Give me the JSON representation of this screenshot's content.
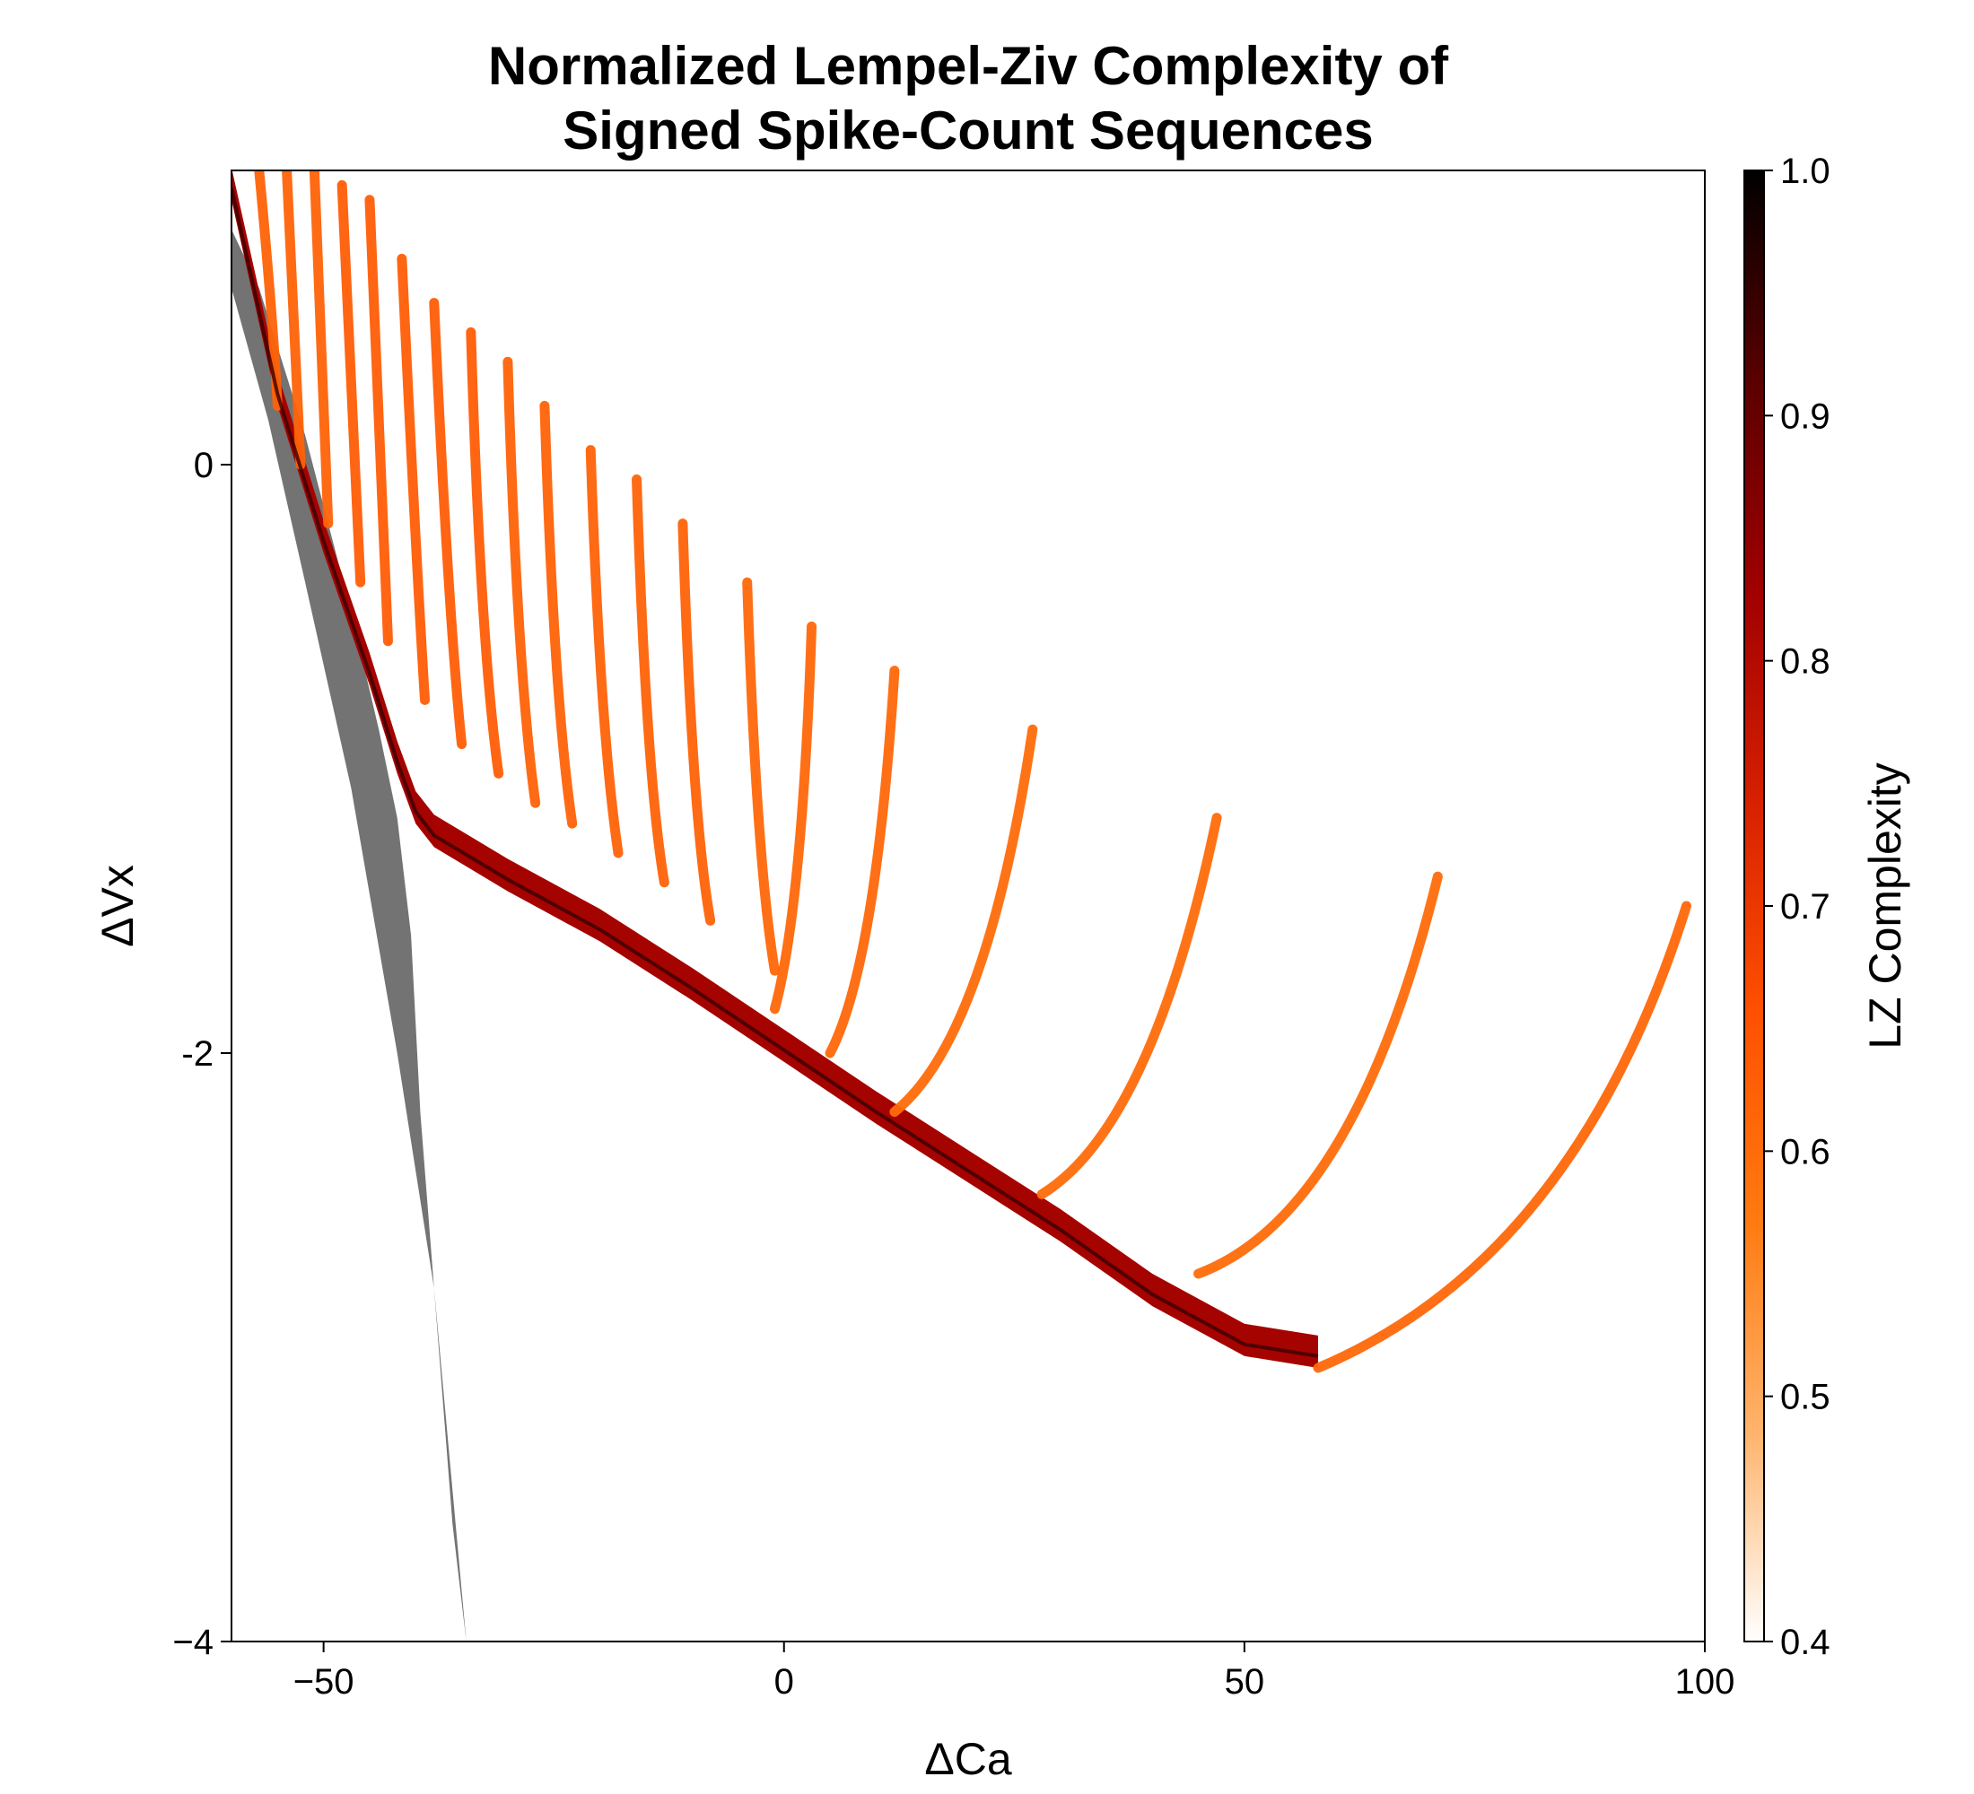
{
  "chart_data": {
    "type": "heatmap",
    "title_lines": [
      "Normalized Lempel-Ziv Complexity of",
      "Signed Spike-Count Sequences"
    ],
    "xlabel": "ΔCa",
    "ylabel": "ΔVx",
    "xlim": [
      -60,
      100
    ],
    "ylim": [
      -4,
      1
    ],
    "x_ticks": [
      -50,
      0,
      50,
      100
    ],
    "x_tick_labels": [
      "−50",
      "0",
      "50",
      "100"
    ],
    "y_ticks": [
      0,
      -2,
      -4
    ],
    "y_tick_labels": [
      "0",
      "-2",
      "−4"
    ],
    "grid": false,
    "colorbar": {
      "label": "LZ Complexity",
      "range": [
        0.4,
        1.0
      ],
      "ticks": [
        1.0,
        0.9,
        0.8,
        0.7,
        0.6,
        0.5,
        0.4
      ],
      "tick_labels": [
        "1.0",
        "0.9",
        "0.8",
        "0.7",
        "0.6",
        "0.5",
        "0.4"
      ],
      "colormap": [
        "#ffffff",
        "#ffb36b",
        "#ff7a10",
        "#ff5000",
        "#d62000",
        "#a00000",
        "#5a0000",
        "#000000"
      ]
    },
    "regions": {
      "black_wedge": {
        "description_value": 1.0,
        "boundary": [
          [
            -60,
            0.8
          ],
          [
            -57,
            0.6
          ],
          [
            -52,
            0.1
          ],
          [
            -47,
            -0.5
          ],
          [
            -44,
            -0.9
          ],
          [
            -42,
            -1.2
          ],
          [
            -40.5,
            -1.6
          ],
          [
            -39.5,
            -2.2
          ],
          [
            -37.5,
            -3.0
          ],
          [
            -36,
            -3.6
          ],
          [
            -34.5,
            -4.0
          ],
          [
            -38,
            -2.8
          ],
          [
            -42,
            -2.0
          ],
          [
            -47,
            -1.1
          ],
          [
            -52,
            -0.4
          ],
          [
            -56,
            0.15
          ],
          [
            -60,
            0.6
          ]
        ]
      },
      "main_arc_lower_edge": [
        [
          -60,
          0.9
        ],
        [
          -55,
          0.2
        ],
        [
          -50,
          -0.3
        ],
        [
          -45,
          -0.75
        ],
        [
          -42,
          -1.05
        ],
        [
          -40,
          -1.22
        ],
        [
          -38,
          -1.3
        ],
        [
          -30,
          -1.45
        ],
        [
          -20,
          -1.62
        ],
        [
          -10,
          -1.82
        ],
        [
          0,
          -2.03
        ],
        [
          10,
          -2.24
        ],
        [
          20,
          -2.44
        ],
        [
          30,
          -2.64
        ],
        [
          40,
          -2.86
        ],
        [
          50,
          -3.03
        ],
        [
          58,
          -3.07
        ]
      ],
      "arcs": [
        {
          "x": [
            -57,
            -55.5,
            -55
          ],
          "y": [
            1.0,
            0.5,
            0.2
          ],
          "value": 0.62
        },
        {
          "x": [
            -54,
            -53,
            -52.5
          ],
          "y": [
            1.0,
            0.3,
            0.0
          ],
          "value": 0.62
        },
        {
          "x": [
            -51,
            -50,
            -49.5
          ],
          "y": [
            1.0,
            0.2,
            -0.2
          ],
          "value": 0.62
        },
        {
          "x": [
            -48,
            -46.5,
            -46
          ],
          "y": [
            0.95,
            0.0,
            -0.4
          ],
          "value": 0.63
        },
        {
          "x": [
            -45,
            -43.5,
            -43
          ],
          "y": [
            0.9,
            -0.2,
            -0.6
          ],
          "value": 0.63
        },
        {
          "x": [
            -41.5,
            -40,
            -39
          ],
          "y": [
            0.7,
            -0.3,
            -0.8
          ],
          "value": 0.63
        },
        {
          "x": [
            -38,
            -36.5,
            -35
          ],
          "y": [
            0.55,
            -0.5,
            -0.95
          ],
          "value": 0.63
        },
        {
          "x": [
            -34,
            -33,
            -31
          ],
          "y": [
            0.45,
            -0.6,
            -1.05
          ],
          "value": 0.63
        },
        {
          "x": [
            -30,
            -29,
            -27
          ],
          "y": [
            0.35,
            -0.7,
            -1.15
          ],
          "value": 0.62
        },
        {
          "x": [
            -26,
            -25,
            -23
          ],
          "y": [
            0.2,
            -0.8,
            -1.22
          ],
          "value": 0.62
        },
        {
          "x": [
            -21,
            -20,
            -18
          ],
          "y": [
            0.05,
            -0.9,
            -1.32
          ],
          "value": 0.62
        },
        {
          "x": [
            -16,
            -15,
            -13
          ],
          "y": [
            -0.05,
            -1.05,
            -1.42
          ],
          "value": 0.62
        },
        {
          "x": [
            -11,
            -10,
            -8
          ],
          "y": [
            -0.2,
            -1.2,
            -1.55
          ],
          "value": 0.62
        },
        {
          "x": [
            -4,
            -3,
            -1
          ],
          "y": [
            -0.4,
            -1.35,
            -1.72
          ],
          "value": 0.61
        },
        {
          "x": [
            3,
            2,
            -1
          ],
          "y": [
            -0.55,
            -1.5,
            -1.85
          ],
          "value": 0.61
        },
        {
          "x": [
            12,
            10,
            5
          ],
          "y": [
            -0.7,
            -1.7,
            -2.0
          ],
          "value": 0.61
        },
        {
          "x": [
            27,
            22,
            12
          ],
          "y": [
            -0.9,
            -1.95,
            -2.2
          ],
          "value": 0.6
        },
        {
          "x": [
            47,
            40,
            28
          ],
          "y": [
            -1.2,
            -2.25,
            -2.48
          ],
          "value": 0.6
        },
        {
          "x": [
            71,
            62,
            45
          ],
          "y": [
            -1.4,
            -2.55,
            -2.75
          ],
          "value": 0.6
        },
        {
          "x": [
            98,
            86,
            58
          ],
          "y": [
            -1.5,
            -2.7,
            -3.07
          ],
          "value": 0.61
        }
      ]
    }
  }
}
